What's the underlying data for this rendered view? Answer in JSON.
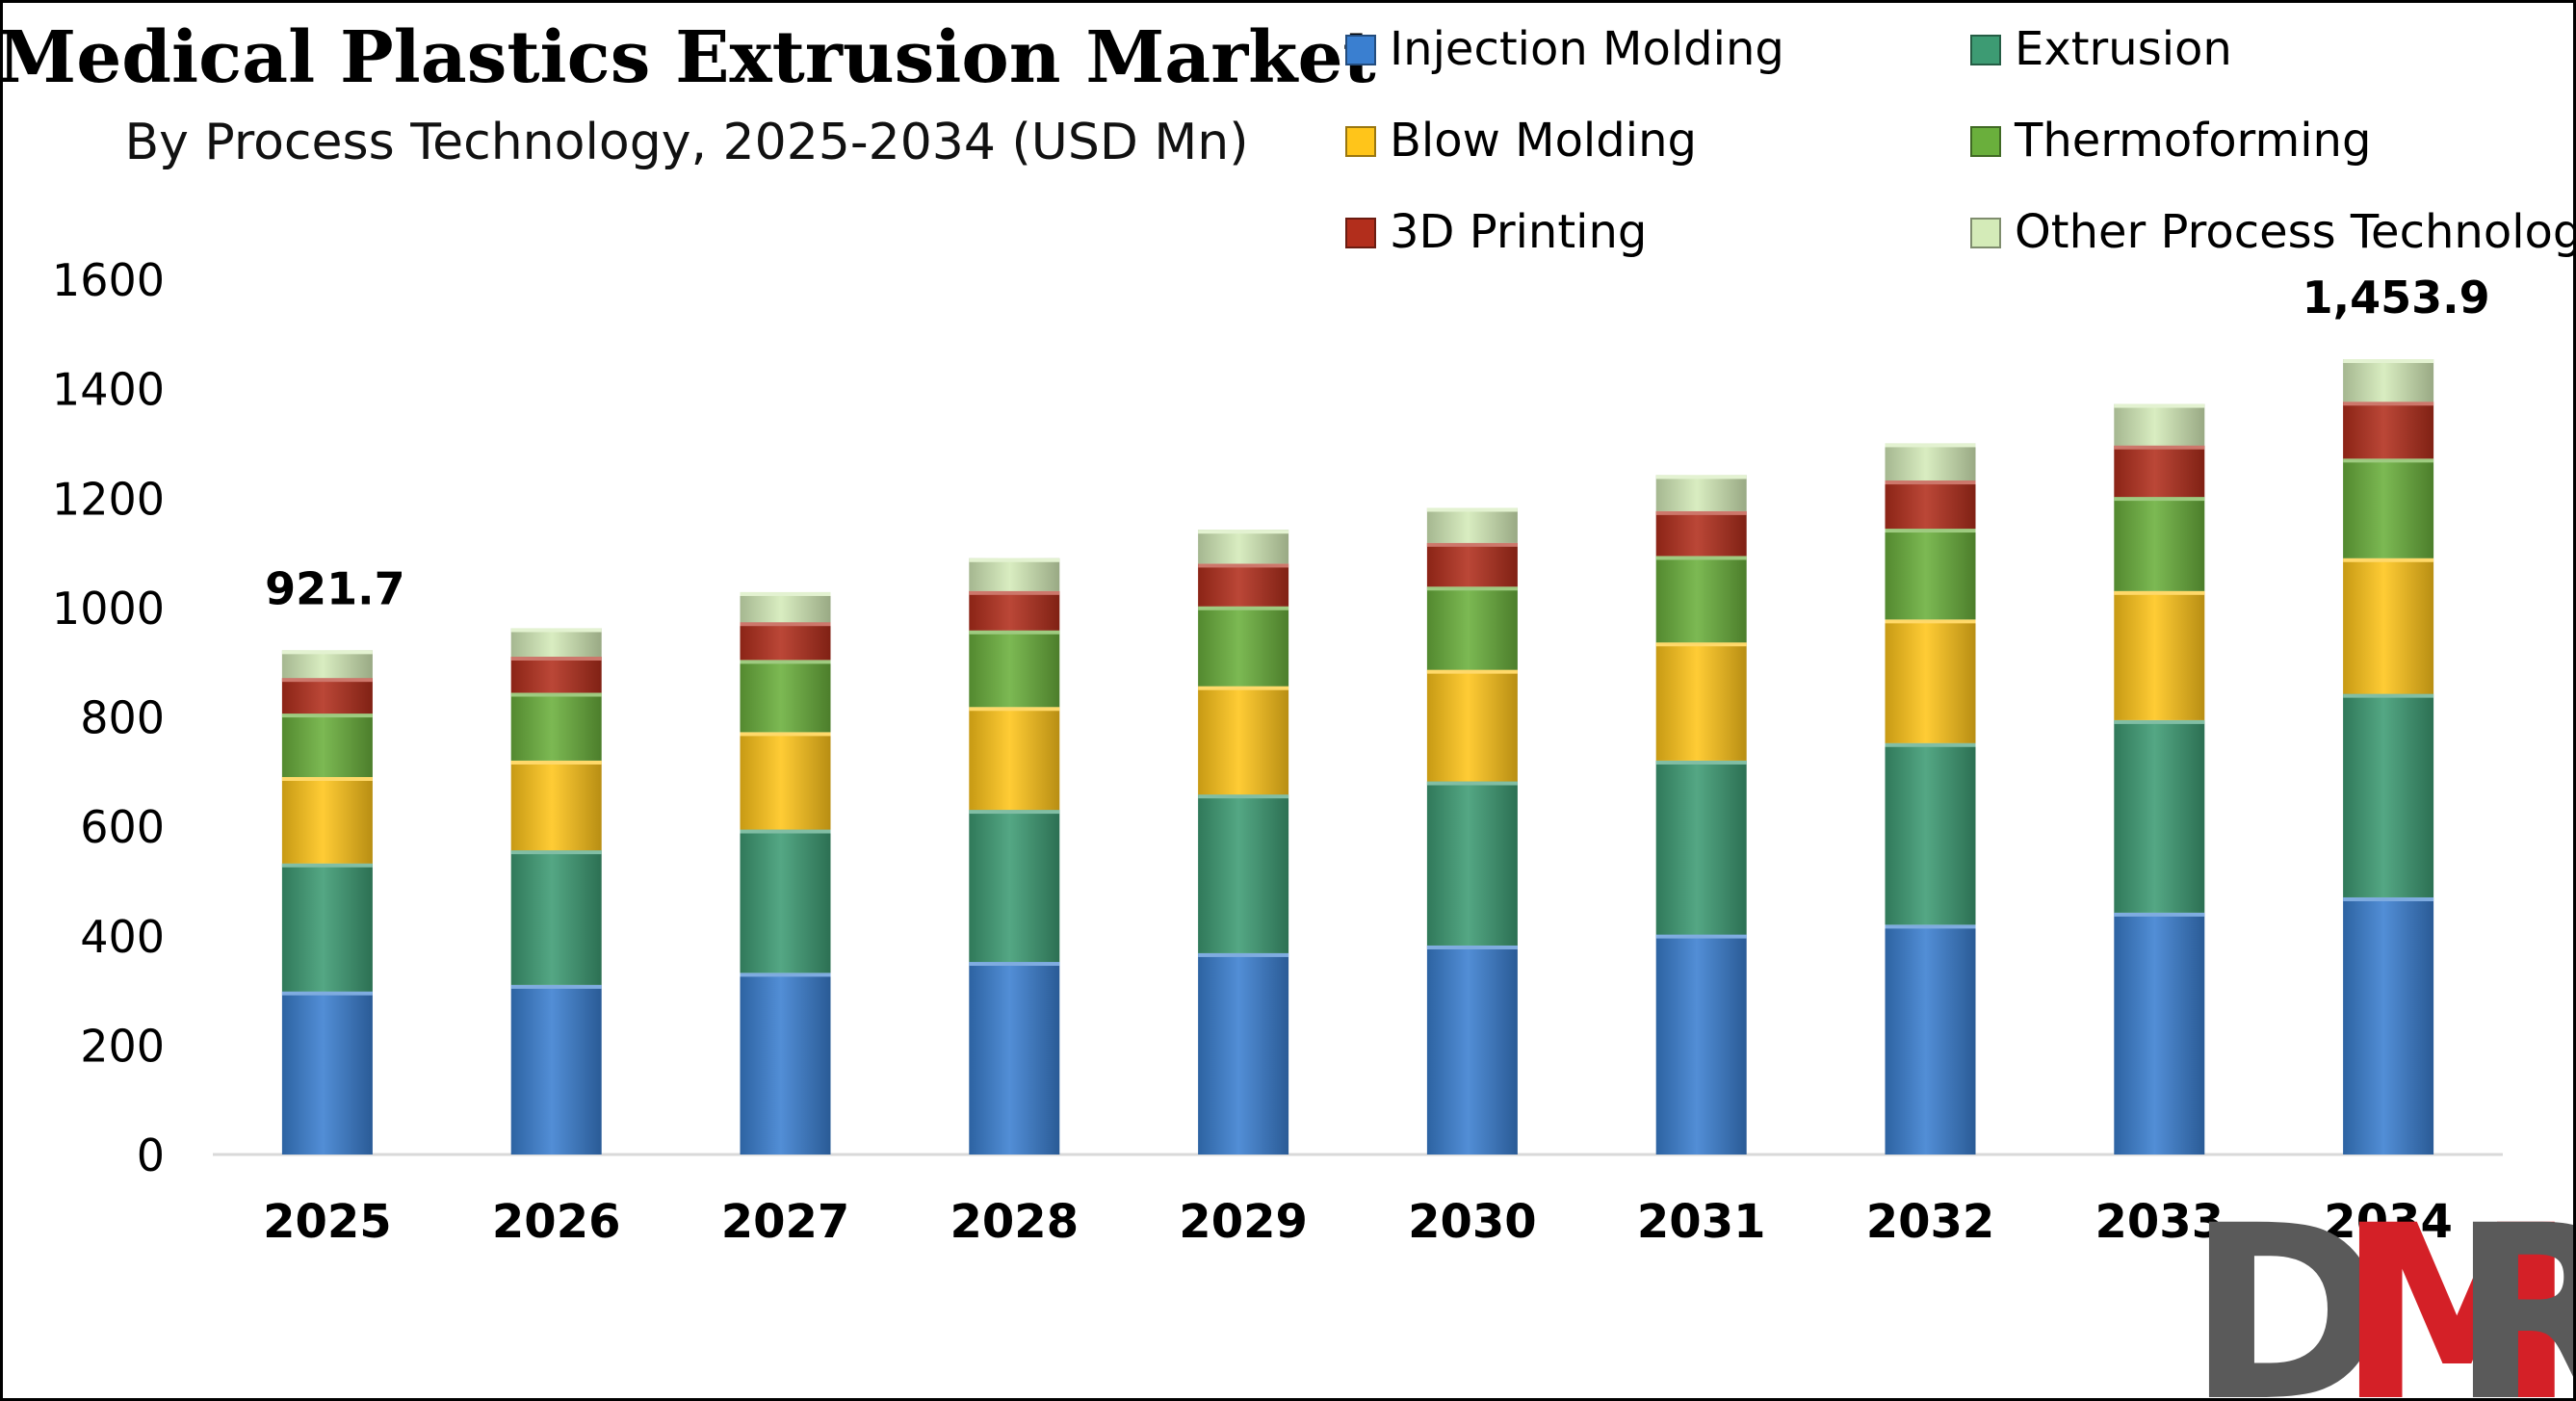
{
  "chart_data": {
    "type": "bar",
    "stacked": true,
    "title": "Medical Plastics Extrusion Market",
    "subtitle": "By Process Technology, 2025-2034 (USD Mn)",
    "categories": [
      "2025",
      "2026",
      "2027",
      "2028",
      "2029",
      "2030",
      "2031",
      "2032",
      "2033",
      "2034"
    ],
    "ylim": [
      0,
      1600
    ],
    "yticks": [
      "0",
      "200",
      "400",
      "600",
      "800",
      "1000",
      "1200",
      "1400",
      "1600"
    ],
    "legend_position": "top-right",
    "grid": false,
    "series": [
      {
        "name": "Injection Molding",
        "color": "#3A7FD0",
        "values": [
          298,
          310,
          332,
          352,
          368,
          382,
          402,
          420,
          442,
          470
        ]
      },
      {
        "name": "Extrusion",
        "color": "#3D9B73",
        "values": [
          234,
          246,
          262,
          278,
          290,
          300,
          318,
          332,
          352,
          372
        ]
      },
      {
        "name": "Blow Molding",
        "color": "#FFC51A",
        "values": [
          158,
          164,
          178,
          188,
          198,
          204,
          216,
          226,
          236,
          248
        ]
      },
      {
        "name": "Thermoforming",
        "color": "#6AAF3C",
        "values": [
          116,
          124,
          132,
          140,
          146,
          152,
          158,
          166,
          172,
          182
        ]
      },
      {
        "name": "3D Printing",
        "color": "#B22E1C",
        "values": [
          65,
          66,
          69,
          72,
          78,
          80,
          82,
          88,
          94,
          104
        ]
      },
      {
        "name": "Other Process Technology",
        "color": "#D4EBB8",
        "values": [
          50.7,
          52,
          55,
          60,
          62,
          64,
          66,
          68,
          76,
          77.9
        ]
      }
    ],
    "data_labels": [
      {
        "category": "2025",
        "text": "921.7"
      },
      {
        "category": "2034",
        "text": "1,453.9"
      }
    ]
  },
  "logo": {
    "text": "DMR",
    "colors": [
      "#5a5a5a",
      "#d42027",
      "#5a5a5a"
    ]
  }
}
